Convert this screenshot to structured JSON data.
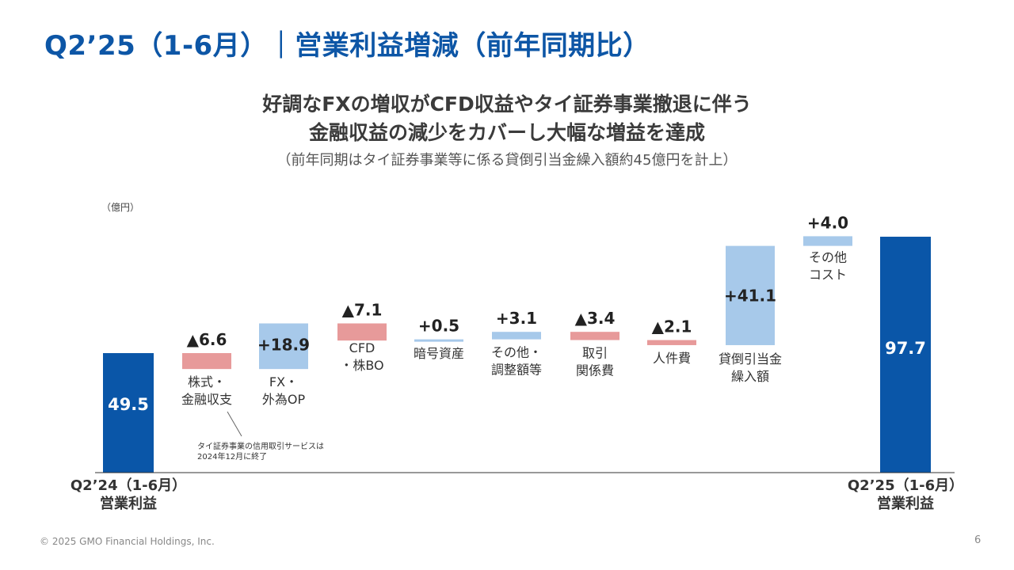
{
  "title": "Q2’25（1-6月）｜営業利益増減（前年同期比）",
  "headline_1": "好調なFXの増収がCFD収益やタイ証券事業撤退に伴う",
  "headline_2": "金融収益の減少をカバーし大幅な増益を達成",
  "subheadline": "（前年同期はタイ証券事業等に係る貸倒引当金繰入額約45億円を計上）",
  "footer": "© 2025 GMO Financial Holdings, Inc.",
  "page_number": "6",
  "colors": {
    "title": "#0d56a6",
    "total": "#0a56a8",
    "increase": "#a7c9ea",
    "decrease": "#e79a9a",
    "axis": "#333333"
  },
  "chart_data": {
    "type": "waterfall",
    "unit_label": "（億円）",
    "start_value": 49.5,
    "end_value": 97.7,
    "steps": [
      {
        "label": [
          "Q2’24（1-6月）",
          "営業利益"
        ],
        "value": 49.5,
        "kind": "total",
        "value_label": "49.5"
      },
      {
        "label": [
          "株式・",
          "金融収支"
        ],
        "value": -6.6,
        "kind": "decrease",
        "value_label": "▲6.6"
      },
      {
        "label": [
          "FX・",
          "外為OP"
        ],
        "value": 18.9,
        "kind": "increase",
        "value_label": "+18.9"
      },
      {
        "label": [
          "CFD",
          "・株BO"
        ],
        "value": -7.1,
        "kind": "decrease",
        "value_label": "▲7.1"
      },
      {
        "label": [
          "暗号資産"
        ],
        "value": 0.5,
        "kind": "increase",
        "value_label": "+0.5"
      },
      {
        "label": [
          "その他・",
          "調整額等"
        ],
        "value": 3.1,
        "kind": "increase",
        "value_label": "+3.1"
      },
      {
        "label": [
          "取引",
          "関係費"
        ],
        "value": -3.4,
        "kind": "decrease",
        "value_label": "▲3.4"
      },
      {
        "label": [
          "人件費"
        ],
        "value": -2.1,
        "kind": "decrease",
        "value_label": "▲2.1"
      },
      {
        "label": [
          "貸倒引当金",
          "繰入額"
        ],
        "value": 41.1,
        "kind": "increase",
        "value_label": "+41.1"
      },
      {
        "label": [
          "その他",
          "コスト"
        ],
        "value": 4.0,
        "kind": "increase",
        "value_label": "+4.0"
      },
      {
        "label": [
          "Q2’25（1-6月）",
          "営業利益"
        ],
        "value": 97.7,
        "kind": "total",
        "value_label": "97.7"
      }
    ],
    "annotation": [
      "タイ証券事業の信用取引サービスは",
      "2024年12月に終了"
    ]
  }
}
